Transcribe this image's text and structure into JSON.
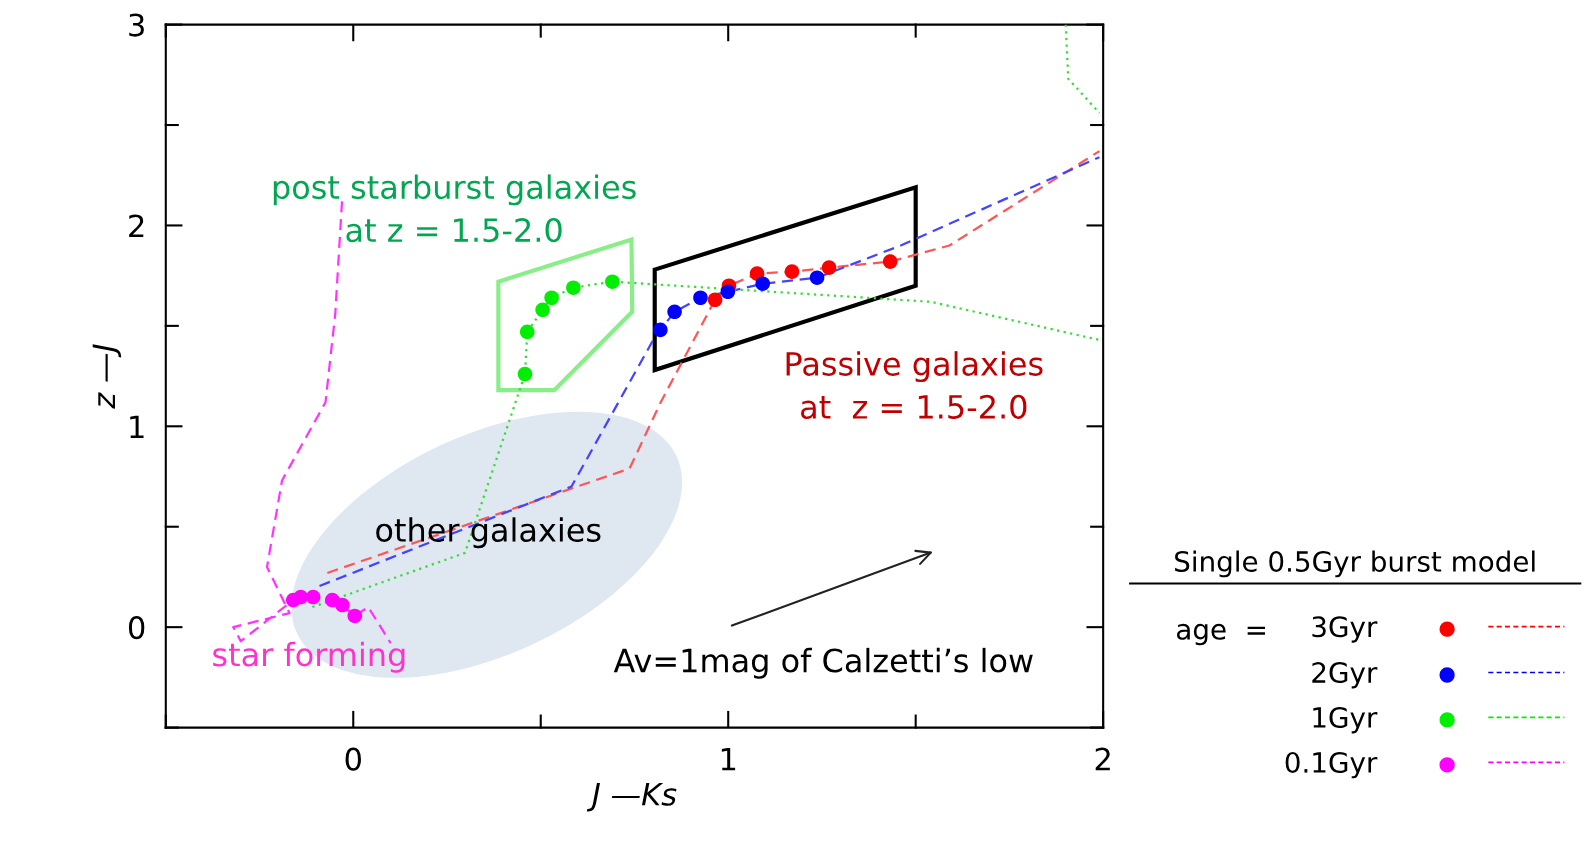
{
  "chart_data": {
    "type": "scatter",
    "xlabel": "J —Ks",
    "ylabel": "z —J",
    "xlim": [
      -0.5,
      2
    ],
    "ylim": [
      -0.5,
      3
    ],
    "xticks": [
      {
        "value": -0.5,
        "label": null
      },
      0,
      {
        "value": 0.5,
        "label": null
      },
      1,
      {
        "value": 1.5,
        "label": null
      },
      2
    ],
    "yticks": [
      {
        "value": -0.5,
        "label": null
      },
      0,
      {
        "value": 0.5,
        "label": null
      },
      1,
      {
        "value": 1.5,
        "label": null
      },
      2,
      {
        "value": 2.5,
        "label": null
      },
      3
    ],
    "grid": false,
    "legend": "bottom right",
    "legend_title": "Single 0.5Gyr burst model",
    "annotations": [
      "post starburst galaxies\nat z = 1.5-2.0",
      "Passive galaxies\nat  z = 1.5-2.0",
      "other galaxies",
      "star forming",
      "Av=1mag of Calzetti’s low",
      "age  ="
    ],
    "series": [
      {
        "type": "line",
        "color": "#ff5555",
        "line_style": "dashed",
        "x": [
          -0.069,
          0.737,
          0.82,
          0.965,
          1.002,
          1.077,
          1.17,
          1.269,
          1.432,
          1.59,
          1.99
        ],
        "values": [
          0.27,
          0.79,
          1.12,
          1.63,
          1.7,
          1.76,
          1.77,
          1.79,
          1.82,
          1.9,
          2.37
        ]
      },
      {
        "type": "line",
        "color": "#4444ff",
        "line_style": "dashed",
        "x": [
          -0.09,
          0.582,
          0.8,
          0.819,
          0.857,
          0.926,
          0.999,
          1.092,
          1.237,
          1.46,
          1.99
        ],
        "values": [
          0.205,
          0.7,
          1.43,
          1.48,
          1.57,
          1.64,
          1.67,
          1.71,
          1.74,
          1.9,
          2.34
        ]
      },
      {
        "type": "line",
        "color": "#33dd33",
        "line_style": "dotted",
        "x": [
          -0.109,
          0.298,
          0.449,
          0.458,
          0.464,
          0.505,
          0.529,
          0.587,
          0.691,
          1.54,
          1.99,
          null,
          1.9,
          1.907,
          1.99
        ],
        "values": [
          0.1,
          0.37,
          1.21,
          1.26,
          1.47,
          1.58,
          1.64,
          1.69,
          1.72,
          1.62,
          1.43,
          null,
          3.0,
          2.73,
          2.56
        ]
      },
      {
        "type": "line",
        "color": "#ff33ff",
        "line_style": "dashed",
        "x": [
          -0.03,
          -0.048,
          -0.074,
          -0.19,
          -0.23,
          -0.17,
          -0.32,
          -0.3,
          -0.16,
          -0.14,
          -0.107,
          -0.056,
          -0.029,
          0.004,
          0.04,
          0.1
        ],
        "values": [
          2.12,
          1.56,
          1.12,
          0.73,
          0.3,
          0.07,
          0.0,
          -0.07,
          0.135,
          0.15,
          0.15,
          0.135,
          0.11,
          0.056,
          0.1,
          -0.08
        ]
      },
      {
        "type": "scatter",
        "name": "3Gyr",
        "color": "#ff0000",
        "marker": "circle",
        "x": [
          0.965,
          1.002,
          1.077,
          1.17,
          1.269,
          1.432
        ],
        "values": [
          1.63,
          1.7,
          1.76,
          1.77,
          1.79,
          1.82
        ]
      },
      {
        "type": "scatter",
        "name": "2Gyr",
        "color": "#0000ff",
        "marker": "circle",
        "x": [
          0.819,
          0.857,
          0.926,
          0.999,
          1.092,
          1.237
        ],
        "values": [
          1.48,
          1.57,
          1.64,
          1.67,
          1.71,
          1.74
        ]
      },
      {
        "type": "scatter",
        "name": "1Gyr",
        "color": "#00ee00",
        "marker": "circle",
        "x": [
          0.458,
          0.464,
          0.505,
          0.529,
          0.587,
          0.691
        ],
        "values": [
          1.26,
          1.47,
          1.58,
          1.64,
          1.69,
          1.72
        ]
      },
      {
        "type": "scatter",
        "name": "0.1Gyr",
        "color": "#ff00ff",
        "marker": "circle",
        "x": [
          -0.16,
          -0.14,
          -0.107,
          -0.056,
          -0.029,
          0.004
        ],
        "values": [
          0.135,
          0.15,
          0.15,
          0.135,
          0.11,
          0.056
        ]
      }
    ]
  }
}
